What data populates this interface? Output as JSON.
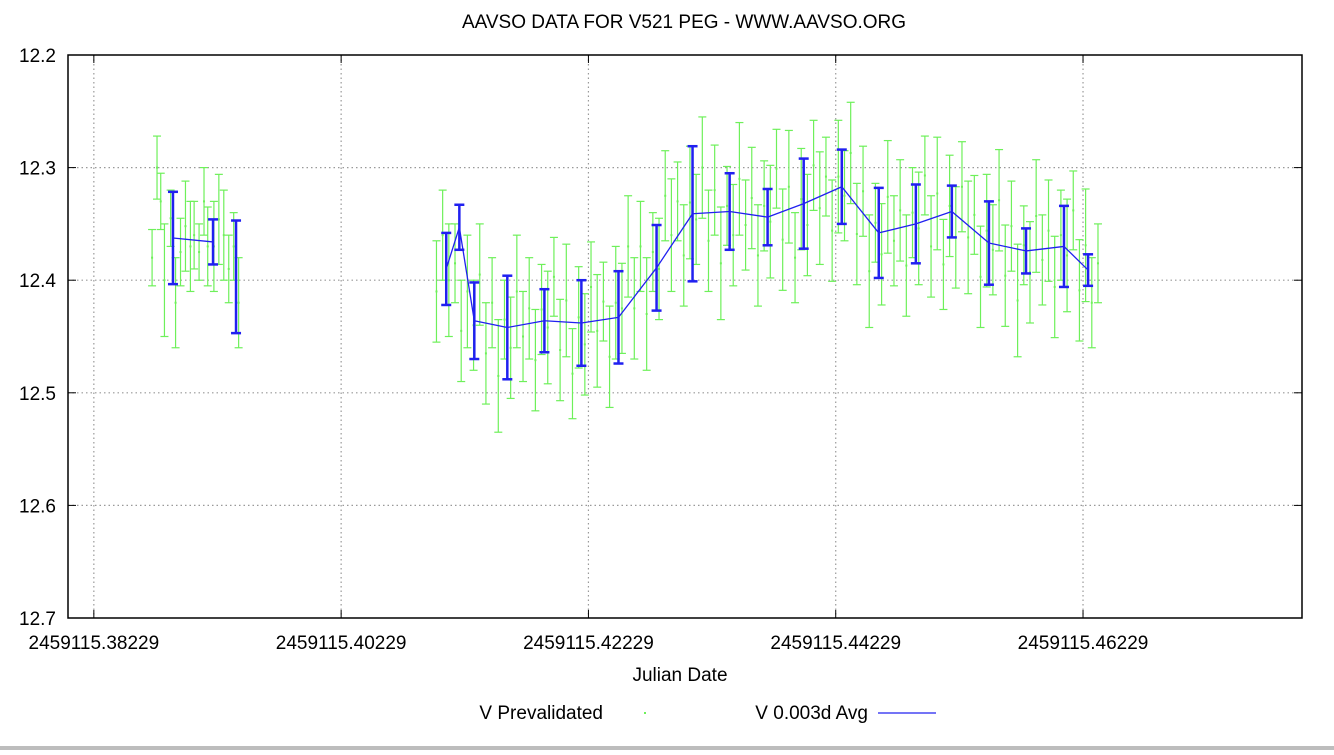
{
  "chart_data": {
    "type": "scatter",
    "title": "AAVSO DATA FOR V521 PEG - WWW.AAVSO.ORG",
    "xlabel": "Julian Date",
    "ylabel": "",
    "jd_base": 2459115,
    "xlim": [
      0.3802,
      0.48
    ],
    "ylim": [
      12.2,
      12.7
    ],
    "y_inverted": true,
    "grid": true,
    "x_ticks": [
      0.38229,
      0.40229,
      0.42229,
      0.44229,
      0.46229
    ],
    "x_tick_labels": [
      "2459115.38229",
      "2459115.40229",
      "2459115.42229",
      "2459115.44229",
      "2459115.46229"
    ],
    "y_ticks": [
      12.2,
      12.3,
      12.4,
      12.5,
      12.6,
      12.7
    ],
    "y_tick_labels": [
      "12.2",
      "12.3",
      "12.4",
      "12.5",
      "12.6",
      "12.7"
    ],
    "legend_position": "bottom-center",
    "legend": [
      {
        "label": "V Prevalidated",
        "color": "#6ef05a",
        "style": "point"
      },
      {
        "label": "V 0.003d Avg",
        "color": "#2020f0",
        "style": "line"
      }
    ],
    "series": [
      {
        "name": "V Prevalidated",
        "color": "#6ef05a",
        "point_format": "[x (JD - jd_base), magnitude, error]",
        "points": [
          [
            0.387,
            12.38,
            0.025
          ],
          [
            0.3874,
            12.3,
            0.028
          ],
          [
            0.3877,
            12.33,
            0.025
          ],
          [
            0.388,
            12.4,
            0.05
          ],
          [
            0.3885,
            12.345,
            0.025
          ],
          [
            0.3889,
            12.42,
            0.04
          ],
          [
            0.3893,
            12.375,
            0.03
          ],
          [
            0.3897,
            12.352,
            0.04
          ],
          [
            0.3901,
            12.37,
            0.04
          ],
          [
            0.3904,
            12.36,
            0.03
          ],
          [
            0.3908,
            12.375,
            0.025
          ],
          [
            0.3912,
            12.33,
            0.03
          ],
          [
            0.3915,
            12.37,
            0.035
          ],
          [
            0.392,
            12.37,
            0.04
          ],
          [
            0.3924,
            12.346,
            0.04
          ],
          [
            0.3928,
            12.36,
            0.04
          ],
          [
            0.3932,
            12.39,
            0.03
          ],
          [
            0.3936,
            12.37,
            0.03
          ],
          [
            0.394,
            12.42,
            0.04
          ],
          [
            0.41,
            12.41,
            0.045
          ],
          [
            0.4105,
            12.36,
            0.04
          ],
          [
            0.411,
            12.4,
            0.05
          ],
          [
            0.4115,
            12.385,
            0.035
          ],
          [
            0.412,
            12.445,
            0.045
          ],
          [
            0.4125,
            12.41,
            0.05
          ],
          [
            0.413,
            12.44,
            0.04
          ],
          [
            0.4135,
            12.395,
            0.045
          ],
          [
            0.414,
            12.465,
            0.045
          ],
          [
            0.4145,
            12.42,
            0.04
          ],
          [
            0.415,
            12.485,
            0.05
          ],
          [
            0.4155,
            12.435,
            0.035
          ],
          [
            0.416,
            12.46,
            0.045
          ],
          [
            0.4165,
            12.41,
            0.05
          ],
          [
            0.417,
            12.45,
            0.04
          ],
          [
            0.4175,
            12.425,
            0.045
          ],
          [
            0.418,
            12.471,
            0.045
          ],
          [
            0.4185,
            12.426,
            0.04
          ],
          [
            0.419,
            12.442,
            0.05
          ],
          [
            0.4195,
            12.397,
            0.035
          ],
          [
            0.42,
            12.462,
            0.045
          ],
          [
            0.4205,
            12.418,
            0.05
          ],
          [
            0.421,
            12.483,
            0.04
          ],
          [
            0.4215,
            12.433,
            0.045
          ],
          [
            0.422,
            12.457,
            0.045
          ],
          [
            0.4225,
            12.406,
            0.04
          ],
          [
            0.423,
            12.445,
            0.05
          ],
          [
            0.4235,
            12.419,
            0.035
          ],
          [
            0.424,
            12.468,
            0.045
          ],
          [
            0.4245,
            12.42,
            0.05
          ],
          [
            0.425,
            12.425,
            0.04
          ],
          [
            0.4255,
            12.37,
            0.045
          ],
          [
            0.426,
            12.425,
            0.045
          ],
          [
            0.4265,
            12.37,
            0.04
          ],
          [
            0.427,
            12.43,
            0.05
          ],
          [
            0.4275,
            12.375,
            0.035
          ],
          [
            0.428,
            12.39,
            0.045
          ],
          [
            0.4285,
            12.325,
            0.04
          ],
          [
            0.429,
            12.36,
            0.05
          ],
          [
            0.4295,
            12.33,
            0.035
          ],
          [
            0.43,
            12.378,
            0.045
          ],
          [
            0.4305,
            12.331,
            0.05
          ],
          [
            0.431,
            12.346,
            0.04
          ],
          [
            0.4315,
            12.3,
            0.045
          ],
          [
            0.432,
            12.365,
            0.045
          ],
          [
            0.4325,
            12.32,
            0.04
          ],
          [
            0.433,
            12.385,
            0.05
          ],
          [
            0.4335,
            12.334,
            0.035
          ],
          [
            0.434,
            12.36,
            0.045
          ],
          [
            0.4345,
            12.31,
            0.05
          ],
          [
            0.435,
            12.351,
            0.04
          ],
          [
            0.4355,
            12.327,
            0.045
          ],
          [
            0.436,
            12.378,
            0.045
          ],
          [
            0.4365,
            12.334,
            0.04
          ],
          [
            0.437,
            12.348,
            0.05
          ],
          [
            0.4375,
            12.301,
            0.035
          ],
          [
            0.438,
            12.364,
            0.045
          ],
          [
            0.4385,
            12.317,
            0.05
          ],
          [
            0.439,
            12.38,
            0.04
          ],
          [
            0.4395,
            12.328,
            0.045
          ],
          [
            0.44,
            12.351,
            0.045
          ],
          [
            0.4405,
            12.298,
            0.04
          ],
          [
            0.441,
            12.336,
            0.05
          ],
          [
            0.4415,
            12.308,
            0.035
          ],
          [
            0.442,
            12.356,
            0.045
          ],
          [
            0.4425,
            12.308,
            0.05
          ],
          [
            0.443,
            12.325,
            0.04
          ],
          [
            0.4435,
            12.287,
            0.045
          ],
          [
            0.444,
            12.359,
            0.045
          ],
          [
            0.4445,
            12.321,
            0.04
          ],
          [
            0.445,
            12.392,
            0.05
          ],
          [
            0.4455,
            12.349,
            0.035
          ],
          [
            0.446,
            12.377,
            0.045
          ],
          [
            0.4465,
            12.326,
            0.05
          ],
          [
            0.447,
            12.365,
            0.04
          ],
          [
            0.4475,
            12.338,
            0.045
          ],
          [
            0.448,
            12.387,
            0.045
          ],
          [
            0.4485,
            12.34,
            0.04
          ],
          [
            0.449,
            12.354,
            0.05
          ],
          [
            0.4495,
            12.307,
            0.035
          ],
          [
            0.45,
            12.37,
            0.045
          ],
          [
            0.4505,
            12.323,
            0.05
          ],
          [
            0.451,
            12.386,
            0.04
          ],
          [
            0.4515,
            12.334,
            0.045
          ],
          [
            0.452,
            12.362,
            0.045
          ],
          [
            0.4525,
            12.317,
            0.04
          ],
          [
            0.453,
            12.362,
            0.05
          ],
          [
            0.4535,
            12.342,
            0.035
          ],
          [
            0.454,
            12.397,
            0.045
          ],
          [
            0.4545,
            12.356,
            0.05
          ],
          [
            0.455,
            12.373,
            0.04
          ],
          [
            0.4555,
            12.329,
            0.045
          ],
          [
            0.456,
            12.396,
            0.045
          ],
          [
            0.4565,
            12.352,
            0.04
          ],
          [
            0.457,
            12.418,
            0.05
          ],
          [
            0.4575,
            12.369,
            0.035
          ],
          [
            0.458,
            12.393,
            0.045
          ],
          [
            0.4585,
            12.343,
            0.05
          ],
          [
            0.459,
            12.382,
            0.04
          ],
          [
            0.4595,
            12.356,
            0.045
          ],
          [
            0.46,
            12.406,
            0.045
          ],
          [
            0.4605,
            12.36,
            0.04
          ],
          [
            0.461,
            12.378,
            0.05
          ],
          [
            0.4615,
            12.338,
            0.035
          ],
          [
            0.462,
            12.409,
            0.045
          ],
          [
            0.4625,
            12.369,
            0.05
          ],
          [
            0.463,
            12.42,
            0.04
          ],
          [
            0.4635,
            12.385,
            0.035
          ]
        ]
      },
      {
        "name": "V 0.003d Avg",
        "color": "#2020f0",
        "point_format": "[x (JD - jd_base), magnitude, error, connected_to_previous]",
        "points": [
          [
            0.38869,
            12.3625,
            0.041,
            false
          ],
          [
            0.39193,
            12.366,
            0.02,
            true
          ],
          [
            0.39379,
            12.397,
            0.05,
            false
          ],
          [
            0.41079,
            12.39,
            0.032,
            false
          ],
          [
            0.41185,
            12.353,
            0.02,
            true
          ],
          [
            0.41306,
            12.436,
            0.034,
            true
          ],
          [
            0.41573,
            12.442,
            0.046,
            true
          ],
          [
            0.41873,
            12.436,
            0.028,
            true
          ],
          [
            0.42172,
            12.438,
            0.038,
            true
          ],
          [
            0.42472,
            12.433,
            0.041,
            true
          ],
          [
            0.4278,
            12.389,
            0.038,
            true
          ],
          [
            0.43071,
            12.341,
            0.06,
            true
          ],
          [
            0.43371,
            12.339,
            0.034,
            true
          ],
          [
            0.43678,
            12.344,
            0.025,
            true
          ],
          [
            0.4397,
            12.332,
            0.04,
            true
          ],
          [
            0.44278,
            12.317,
            0.033,
            true
          ],
          [
            0.44577,
            12.358,
            0.04,
            true
          ],
          [
            0.44877,
            12.35,
            0.035,
            true
          ],
          [
            0.45168,
            12.339,
            0.023,
            true
          ],
          [
            0.45468,
            12.367,
            0.037,
            true
          ],
          [
            0.45768,
            12.374,
            0.02,
            true
          ],
          [
            0.46075,
            12.37,
            0.036,
            true
          ],
          [
            0.4627,
            12.391,
            0.014,
            true
          ]
        ]
      }
    ]
  }
}
